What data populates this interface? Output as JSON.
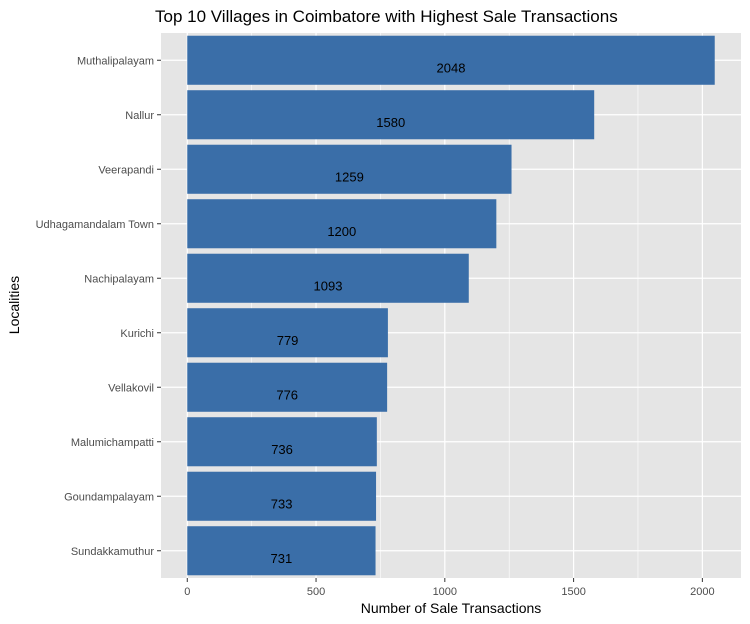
{
  "chart_data": {
    "type": "bar",
    "orientation": "horizontal",
    "title": "Top 10 Villages in Coimbatore with Highest Sale Transactions",
    "xlabel": "Number of Sale Transactions",
    "ylabel": "Localities",
    "categories": [
      "Muthalipalayam",
      "Nallur",
      "Veerapandi",
      "Udhagamandalam Town",
      "Nachipalayam",
      "Kurichi",
      "Vellakovil",
      "Malumichampatti",
      "Goundampalayam",
      "Sundakkamuthur"
    ],
    "values": [
      2048,
      1580,
      1259,
      1200,
      1093,
      779,
      776,
      736,
      733,
      731
    ],
    "data_labels": [
      "2048",
      "1580",
      "1259",
      "1200",
      "1093",
      "779",
      "776",
      "736",
      "733",
      "731"
    ],
    "xticks": [
      0,
      500,
      1000,
      1500,
      2000
    ],
    "xtick_labels": [
      "0",
      "500",
      "1000",
      "1500",
      "2000"
    ],
    "xlim": [
      -102,
      2150
    ],
    "grid": true,
    "legend": "none",
    "colors": {
      "bar": "#3a6ea8",
      "panel": "#e5e5e5",
      "grid": "#ffffff",
      "text": "#000000",
      "tick_text": "#4d4d4d"
    }
  }
}
